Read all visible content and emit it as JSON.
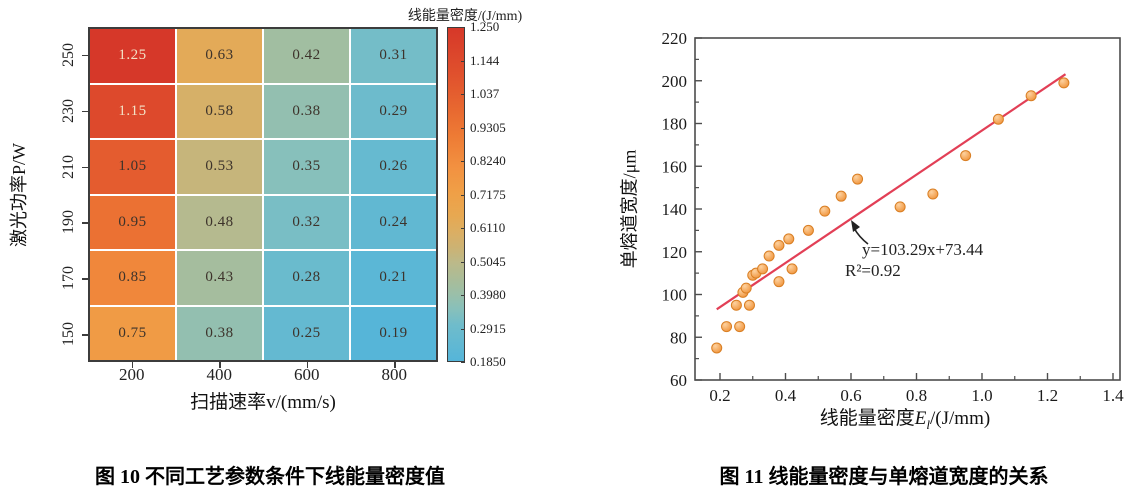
{
  "captions": {
    "left": "图 10 不同工艺参数条件下线能量密度值",
    "right": "图 11 线能量密度与单熔道宽度的关系"
  },
  "chart_data": [
    {
      "type": "heatmap",
      "xlabel": "扫描速率v/(mm/s)",
      "ylabel": "激光功率P/W",
      "x_tick_labels": [
        "200",
        "400",
        "600",
        "800"
      ],
      "y_tick_labels": [
        "250",
        "230",
        "210",
        "190",
        "170",
        "150"
      ],
      "values": [
        [
          1.25,
          0.63,
          0.42,
          0.31
        ],
        [
          1.15,
          0.58,
          0.38,
          0.29
        ],
        [
          1.05,
          0.53,
          0.35,
          0.26
        ],
        [
          0.95,
          0.48,
          0.32,
          0.24
        ],
        [
          0.85,
          0.43,
          0.28,
          0.21
        ],
        [
          0.75,
          0.38,
          0.25,
          0.19
        ]
      ],
      "colorbar": {
        "title": "线能量密度/(J/mm)",
        "tick_labels": [
          "1.250",
          "1.144",
          "1.037",
          "0.9305",
          "0.8240",
          "0.7175",
          "0.6110",
          "0.5045",
          "0.3980",
          "0.2915",
          "0.1850"
        ],
        "min": 0.185,
        "max": 1.25
      },
      "colormap_stops": [
        [
          0.185,
          "#55b5d9"
        ],
        [
          0.3,
          "#6fbccb"
        ],
        [
          0.35,
          "#87c0bb"
        ],
        [
          0.4,
          "#9bbfa8"
        ],
        [
          0.45,
          "#abbc97"
        ],
        [
          0.5,
          "#bcb989"
        ],
        [
          0.55,
          "#cdb272"
        ],
        [
          0.6,
          "#dcae62"
        ],
        [
          0.65,
          "#e7a851"
        ],
        [
          0.72,
          "#efa047"
        ],
        [
          0.8,
          "#f29241"
        ],
        [
          0.9,
          "#ee7c35"
        ],
        [
          1.0,
          "#e76630"
        ],
        [
          1.1,
          "#e0512d"
        ],
        [
          1.25,
          "#d63829"
        ]
      ],
      "light_text_threshold": 1.1,
      "light_text_color": "#f3e3c7",
      "dark_text_color": "#3d332b"
    },
    {
      "type": "scatter",
      "ylabel": "单熔道宽度/μm",
      "xlabel_parts": {
        "prefix": "线能量密度",
        "symbol": "E",
        "sub": "l",
        "suffix": "/(J/mm)"
      },
      "x_ticks": [
        0.2,
        0.4,
        0.6,
        0.8,
        1.0,
        1.2,
        1.4
      ],
      "x_minor_ticks": [
        0.3,
        0.5,
        0.7,
        0.9,
        1.1,
        1.3
      ],
      "y_ticks": [
        60,
        80,
        100,
        120,
        140,
        160,
        180,
        200,
        220
      ],
      "y_minor_ticks": [
        70,
        90,
        110,
        130,
        150,
        170,
        190,
        210
      ],
      "xlim": [
        0.124,
        1.422
      ],
      "ylim": [
        60,
        220
      ],
      "points": [
        [
          0.19,
          75
        ],
        [
          0.22,
          85
        ],
        [
          0.26,
          85
        ],
        [
          0.25,
          95
        ],
        [
          0.29,
          95
        ],
        [
          0.27,
          101
        ],
        [
          0.28,
          103
        ],
        [
          0.3,
          109
        ],
        [
          0.31,
          110
        ],
        [
          0.33,
          112
        ],
        [
          0.35,
          118
        ],
        [
          0.38,
          106
        ],
        [
          0.38,
          123
        ],
        [
          0.41,
          126
        ],
        [
          0.42,
          112
        ],
        [
          0.47,
          130
        ],
        [
          0.52,
          139
        ],
        [
          0.57,
          146
        ],
        [
          0.62,
          154
        ],
        [
          0.75,
          141
        ],
        [
          0.85,
          147
        ],
        [
          0.95,
          165
        ],
        [
          1.05,
          182
        ],
        [
          1.15,
          193
        ],
        [
          1.25,
          199
        ]
      ],
      "point_color": "#f6a54f",
      "point_edge": "#d97f24",
      "fit_line": {
        "slope": 103.29,
        "intercept": 73.44,
        "x_start": 0.19,
        "x_end": 1.255,
        "color": "#e23f56",
        "equation": "y=103.29x+73.44",
        "r_squared": "R²=0.92"
      }
    }
  ]
}
